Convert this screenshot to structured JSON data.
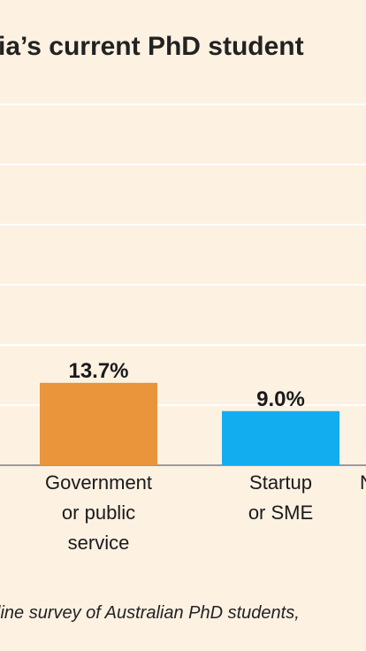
{
  "title": "ia’s current PhD student",
  "source": "line survey of Australian PhD students,",
  "colors": {
    "background": "#fdf1e2",
    "gridline": "#ffffff",
    "axis": "#9a9a9a"
  },
  "chart_data": {
    "type": "bar",
    "categories": [
      [
        "Government",
        "or public",
        "service"
      ],
      [
        "Startup",
        "or SME"
      ],
      [
        "N"
      ]
    ],
    "values": [
      13.7,
      9.0,
      null
    ],
    "value_labels": [
      "13.7%",
      "9.0%",
      ""
    ],
    "bar_colors": [
      "#ea943b",
      "#12adef",
      "#12adef"
    ],
    "ylim": [
      0,
      50
    ],
    "grid": true,
    "gridline_values": [
      10,
      20,
      30,
      40,
      50,
      60
    ]
  }
}
